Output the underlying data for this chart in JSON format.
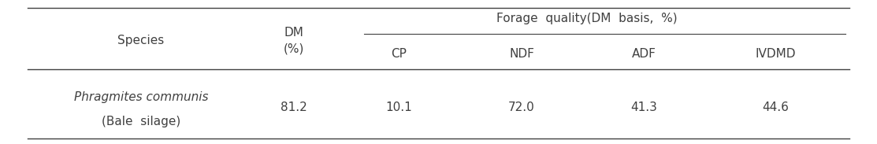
{
  "title_species": "Species",
  "title_dm": "DM\n(%)",
  "title_forage": "Forage  quality(DM  basis,  %)",
  "col_headers": [
    "CP",
    "NDF",
    "ADF",
    "IVDMD"
  ],
  "row1_species_italic": "Phragmites communis",
  "row1_species_normal": "(Bale  silage)",
  "row1_dm": "81.2",
  "row1_values": [
    "10.1",
    "72.0",
    "41.3",
    "44.6"
  ],
  "bg_color": "#ffffff",
  "text_color": "#404040",
  "line_color": "#404040",
  "font_size": 11,
  "header_font_size": 11
}
